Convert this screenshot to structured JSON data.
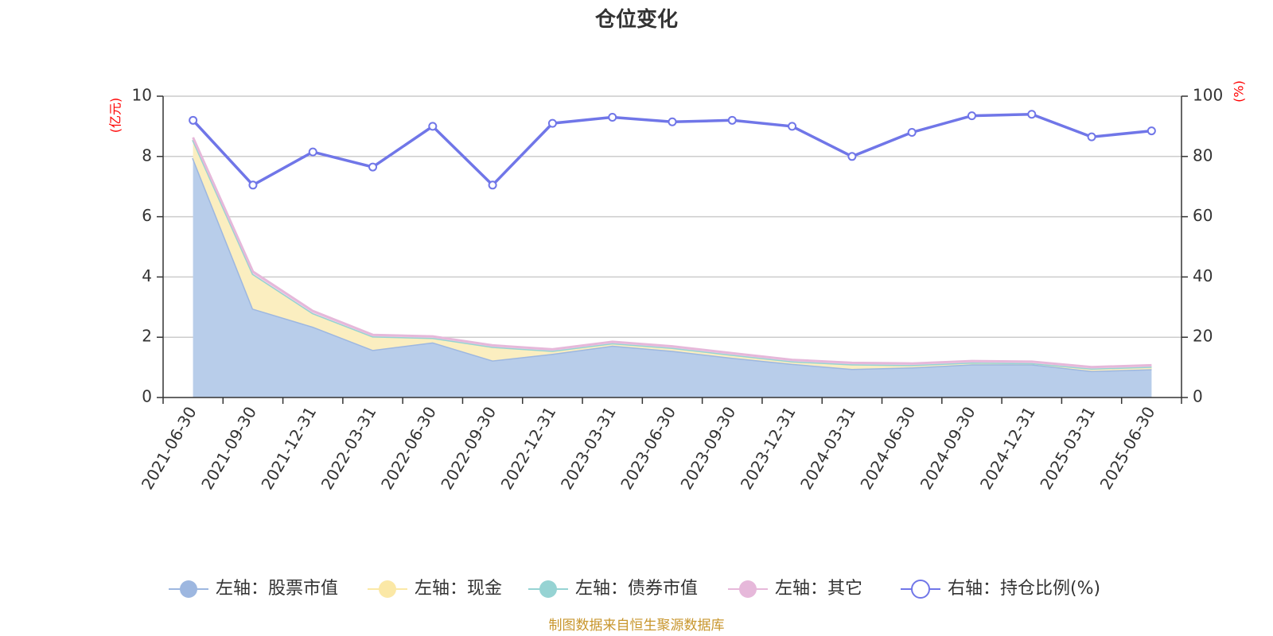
{
  "chart_data": {
    "type": "area",
    "title": "仓位变化",
    "source_note": "制图数据来自恒生聚源数据库",
    "categories": [
      "2021-06-30",
      "2021-09-30",
      "2021-12-31",
      "2022-03-31",
      "2022-06-30",
      "2022-09-30",
      "2022-12-31",
      "2023-03-31",
      "2023-06-30",
      "2023-09-30",
      "2023-12-31",
      "2024-03-31",
      "2024-06-30",
      "2024-09-30",
      "2024-12-31",
      "2025-03-31",
      "2025-06-30"
    ],
    "left_axis": {
      "unit": "(亿元)",
      "ylim": [
        0,
        10
      ],
      "ticks": [
        "0",
        "2",
        "4",
        "6",
        "8",
        "10"
      ]
    },
    "right_axis": {
      "unit": "(%)",
      "ylim": [
        0,
        100
      ],
      "ticks": [
        "0",
        "20",
        "40",
        "60",
        "80",
        "100"
      ]
    },
    "grid": true,
    "legend_position": "bottom",
    "series": [
      {
        "name": "左轴：股票市值",
        "axis": "left",
        "kind": "area",
        "color": "#9db7e0",
        "fill": "#b8cdea",
        "values": [
          7.95,
          2.95,
          2.35,
          1.58,
          1.83,
          1.23,
          1.45,
          1.72,
          1.55,
          1.32,
          1.12,
          0.95,
          1.0,
          1.1,
          1.1,
          0.88,
          0.94
        ]
      },
      {
        "name": "左轴：现金",
        "axis": "left",
        "kind": "area",
        "color": "#fbe8a6",
        "fill": "#fbeec0",
        "values": [
          0.6,
          1.15,
          0.45,
          0.45,
          0.15,
          0.45,
          0.1,
          0.08,
          0.1,
          0.1,
          0.08,
          0.15,
          0.08,
          0.06,
          0.04,
          0.08,
          0.08
        ]
      },
      {
        "name": "左轴：债券市值",
        "axis": "left",
        "kind": "area",
        "color": "#96d3d3",
        "fill": "#b5e1e1",
        "values": [
          0,
          0,
          0,
          0,
          0,
          0,
          0,
          0,
          0,
          0,
          0,
          0,
          0,
          0,
          0,
          0,
          0
        ]
      },
      {
        "name": "左轴：其它",
        "axis": "left",
        "kind": "area",
        "color": "#e6b8da",
        "fill": "#f0d3e8",
        "values": [
          0.08,
          0.08,
          0.07,
          0.05,
          0.05,
          0.05,
          0.05,
          0.05,
          0.05,
          0.05,
          0.05,
          0.05,
          0.05,
          0.05,
          0.05,
          0.05,
          0.05
        ]
      },
      {
        "name": "右轴：持仓比例(%)",
        "axis": "right",
        "kind": "line",
        "color": "#7076e8",
        "values": [
          92,
          70.5,
          81.5,
          76.5,
          90,
          70.5,
          91,
          93,
          91.5,
          92,
          90,
          80,
          88,
          93.5,
          94,
          86.5,
          88.5
        ]
      }
    ]
  }
}
